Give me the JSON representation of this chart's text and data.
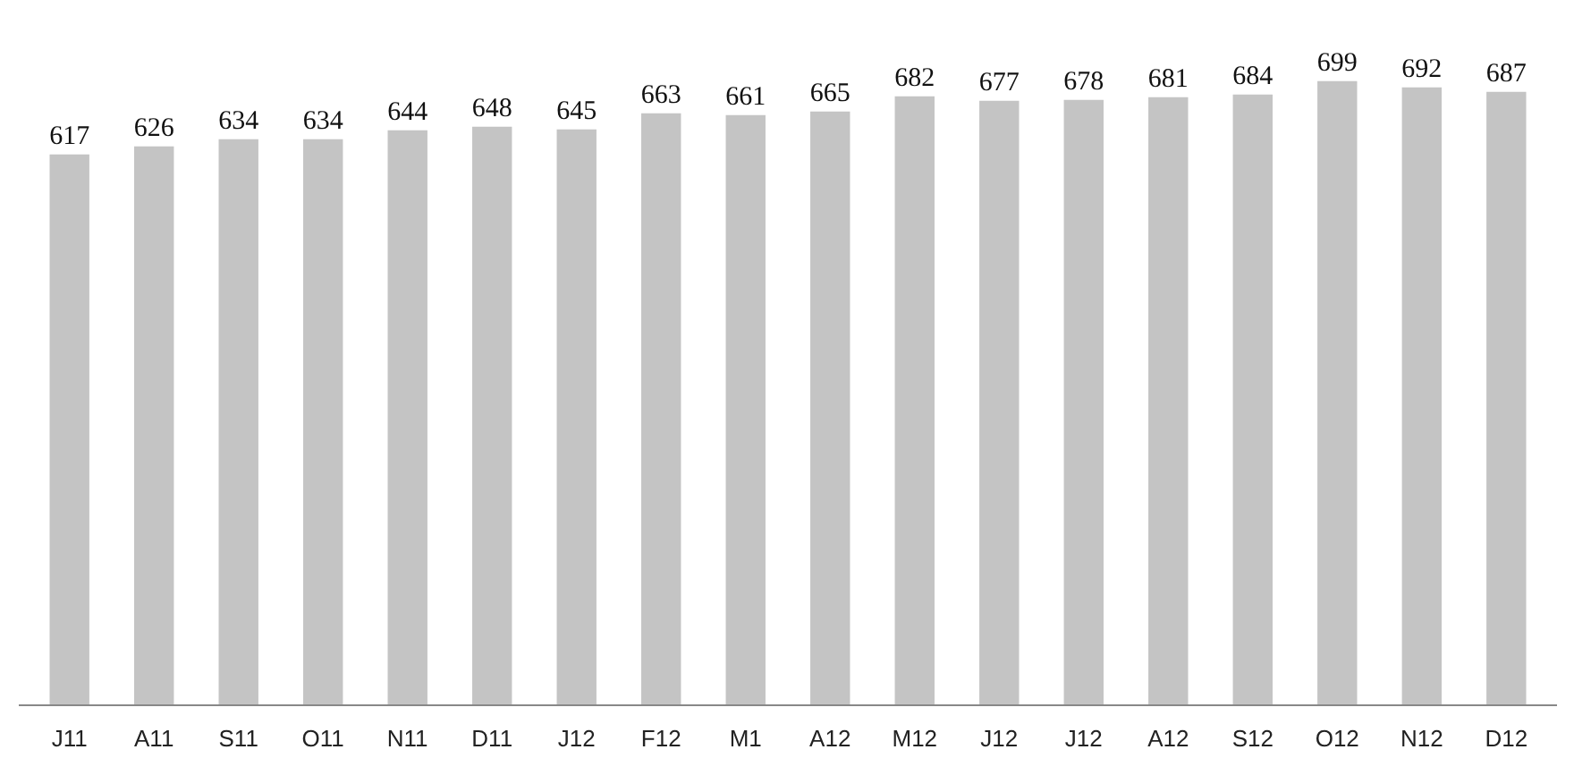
{
  "chart_data": {
    "type": "bar",
    "categories": [
      "J11",
      "A11",
      "S11",
      "O11",
      "N11",
      "D11",
      "J12",
      "F12",
      "M1",
      "A12",
      "M12",
      "J12",
      "J12",
      "A12",
      "S12",
      "O12",
      "N12",
      "D12"
    ],
    "values": [
      617,
      626,
      634,
      634,
      644,
      648,
      645,
      663,
      661,
      665,
      682,
      677,
      678,
      681,
      684,
      699,
      692,
      687
    ],
    "color": "#c4c4c4",
    "data_labels": true
  }
}
